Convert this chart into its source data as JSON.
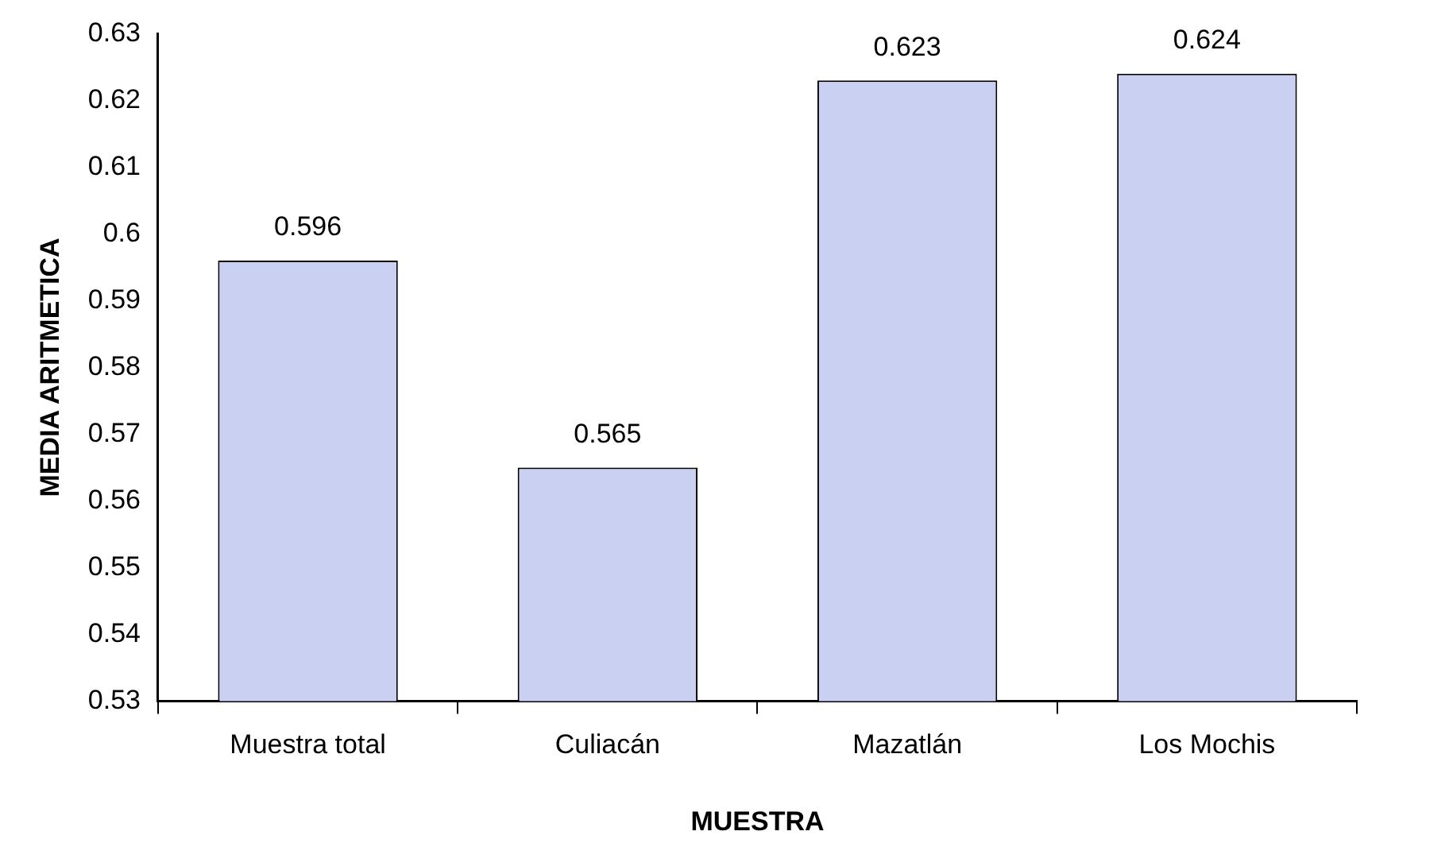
{
  "chart_data": {
    "type": "bar",
    "xlabel": "MUESTRA",
    "ylabel": "MEDIA ARITMETICA",
    "categories": [
      "Muestra total",
      "Culiacán",
      "Mazatlán",
      "Los Mochis"
    ],
    "values": [
      0.596,
      0.565,
      0.623,
      0.624
    ],
    "color": "#c9d0f2",
    "ylim": [
      0.53,
      0.63
    ],
    "yticks": [
      0.53,
      0.54,
      0.55,
      0.56,
      0.57,
      0.58,
      0.59,
      0.6,
      0.61,
      0.62,
      0.63
    ],
    "grid": false,
    "legend": false,
    "data_labels": true
  }
}
